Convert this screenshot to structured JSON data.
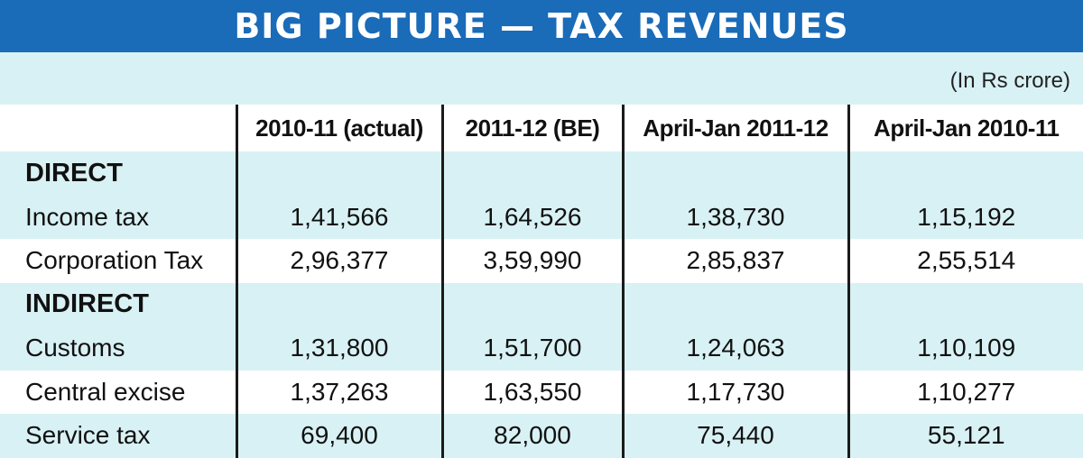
{
  "title": "BIG PICTURE — TAX REVENUES",
  "units": "(In Rs crore)",
  "columns": [
    "2010-11 (actual)",
    "2011-12 (BE)",
    "April-Jan 2011-12",
    "April-Jan 2010-11"
  ],
  "sections": [
    {
      "name": "DIRECT",
      "rows": [
        {
          "label": "Income tax",
          "values": [
            "1,41,566",
            "1,64,526",
            "1,38,730",
            "1,15,192"
          ]
        },
        {
          "label": "Corporation Tax",
          "values": [
            "2,96,377",
            "3,59,990",
            "2,85,837",
            "2,55,514"
          ]
        }
      ]
    },
    {
      "name": "INDIRECT",
      "rows": [
        {
          "label": "Customs",
          "values": [
            "1,31,800",
            "1,51,700",
            "1,24,063",
            "1,10,109"
          ]
        },
        {
          "label": "Central excise",
          "values": [
            "1,37,263",
            "1,63,550",
            "1,17,730",
            "1,10,277"
          ]
        },
        {
          "label": "Service tax",
          "values": [
            "69,400",
            "82,000",
            "75,440",
            "55,121"
          ]
        }
      ]
    }
  ],
  "colors": {
    "title_bg": "#1a6bb8",
    "shade": "#d8f1f4",
    "text": "#111111"
  }
}
